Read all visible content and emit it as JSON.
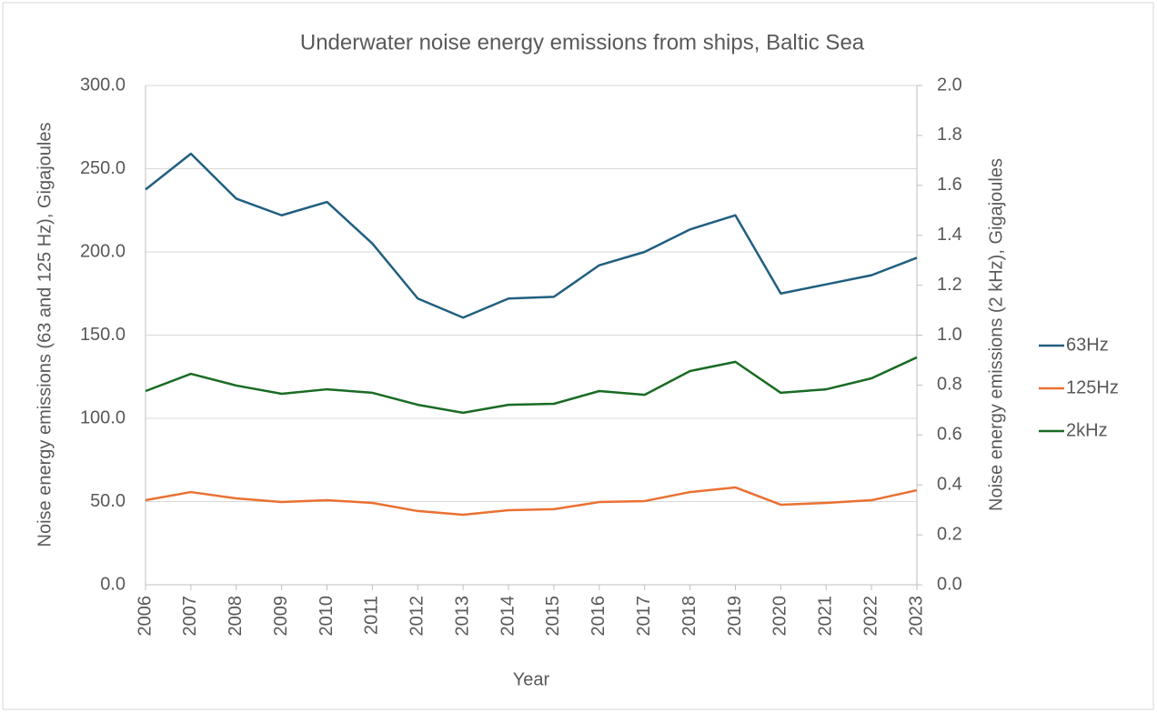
{
  "chart_data": {
    "type": "line",
    "title": "Underwater noise energy emissions from ships, Baltic Sea",
    "xlabel": "Year",
    "ylabel": "Noise energy emissions (63 and 125 Hz), Gigajoules",
    "y2label": "Noise energy emissions (2 kHz), Gigajoules",
    "categories": [
      "2006",
      "2007",
      "2008",
      "2009",
      "2010",
      "2011",
      "2012",
      "2013",
      "2014",
      "2015",
      "2016",
      "2017",
      "2018",
      "2019",
      "2020",
      "2021",
      "2022",
      "2023"
    ],
    "ylim": [
      0,
      300
    ],
    "yticks": [
      {
        "value": 0,
        "label": "0.0"
      },
      {
        "value": 50,
        "label": "50.0"
      },
      {
        "value": 100,
        "label": "100.0"
      },
      {
        "value": 150,
        "label": "150.0"
      },
      {
        "value": 200,
        "label": "200.0"
      },
      {
        "value": 250,
        "label": "250.0"
      },
      {
        "value": 300,
        "label": "300.0"
      }
    ],
    "y2lim": [
      0,
      2
    ],
    "y2ticks": [
      {
        "value": 0,
        "label": "0.0"
      },
      0.2,
      0.4,
      0.6,
      0.8,
      {
        "value": 1,
        "label": "1.0"
      },
      1.2,
      1.4,
      1.6,
      1.8,
      {
        "value": 2,
        "label": "2.0"
      }
    ],
    "grid": true,
    "legend": "right",
    "series": [
      {
        "name": "63Hz",
        "color": "#215f7f",
        "values": [
          237.5,
          259,
          232,
          222,
          230,
          205,
          172,
          160.5,
          172,
          173,
          192,
          200,
          213.5,
          222,
          175,
          180.5,
          186,
          196.5
        ]
      },
      {
        "name": "125Hz",
        "color": "#e97132",
        "values": [
          50.8,
          55.7,
          51.9,
          49.7,
          50.8,
          49.2,
          44.3,
          42.1,
          44.8,
          45.4,
          49.7,
          50.3,
          55.7,
          58.5,
          48.1,
          49.2,
          50.8,
          56.8
        ]
      },
      {
        "name": "2kHz",
        "color": "#196b24",
        "axis": "y2",
        "values": [
          0.776,
          0.845,
          0.798,
          0.765,
          0.783,
          0.769,
          0.721,
          0.689,
          0.721,
          0.725,
          0.776,
          0.761,
          0.856,
          0.893,
          0.769,
          0.783,
          0.827,
          0.911
        ]
      }
    ]
  }
}
